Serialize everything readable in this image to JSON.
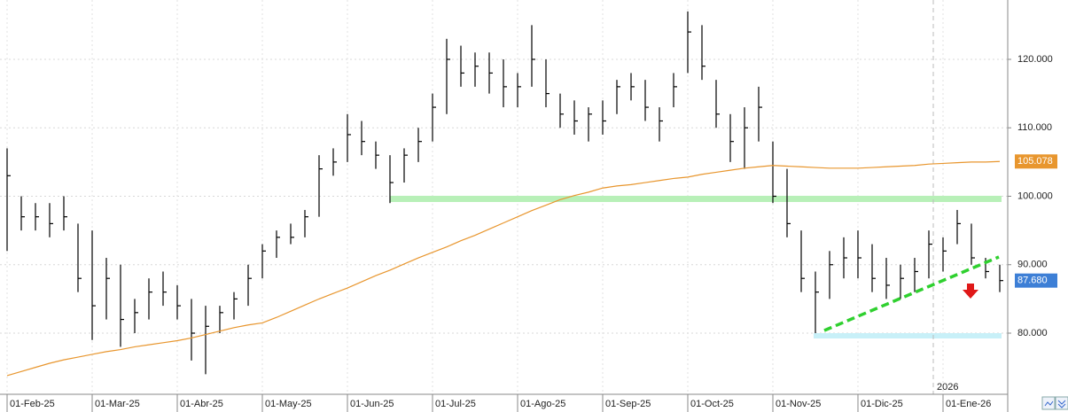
{
  "chart_data": {
    "type": "ohlc",
    "categories": [
      "01-Feb-25",
      null,
      null,
      null,
      null,
      null,
      "01-Mar-25",
      null,
      null,
      null,
      null,
      null,
      "01-Abr-25",
      null,
      null,
      null,
      null,
      null,
      "01-May-25",
      null,
      null,
      null,
      null,
      null,
      "01-Jun-25",
      null,
      null,
      null,
      null,
      null,
      "01-Jul-25",
      null,
      null,
      null,
      null,
      null,
      "01-Ago-25",
      null,
      null,
      null,
      null,
      null,
      "01-Sep-25",
      null,
      null,
      null,
      null,
      null,
      "01-Oct-25",
      null,
      null,
      null,
      null,
      null,
      "01-Nov-25",
      null,
      null,
      null,
      null,
      null,
      "01-Dic-25",
      null,
      null,
      null,
      null,
      null,
      "01-Ene-26",
      null,
      null,
      null,
      null
    ],
    "year_label": "2026",
    "ylim": [
      71.07,
      128.67
    ],
    "yticks": [
      {
        "value": 80,
        "label": "80.000"
      },
      {
        "value": 90,
        "label": "90.000"
      },
      {
        "value": 100,
        "label": "100.000"
      },
      {
        "value": 110,
        "label": "110.000"
      },
      {
        "value": 120,
        "label": "120.000"
      }
    ],
    "grid": true,
    "series": [
      {
        "type": "ohlc",
        "color": "#000000",
        "label_color": "#3d7fd6",
        "high": [
          107,
          100,
          99,
          99,
          100,
          96,
          95,
          91,
          90,
          85,
          88,
          89,
          87,
          85,
          84,
          84,
          86,
          90,
          93,
          95,
          96,
          98,
          106,
          107,
          112,
          111,
          108,
          106,
          107,
          110,
          115,
          123,
          122,
          121,
          121,
          120,
          118,
          125,
          120,
          115,
          114,
          113,
          114,
          117,
          118,
          117,
          113,
          118,
          127,
          125,
          117,
          112,
          113,
          116,
          108,
          104,
          95,
          89,
          92,
          94,
          95,
          93,
          91,
          90,
          91,
          95,
          94,
          98,
          96,
          91,
          90
        ],
        "low": [
          92,
          95,
          95,
          94,
          95,
          86,
          79,
          82,
          78,
          80,
          82,
          84,
          82,
          76,
          74,
          80,
          82,
          84,
          88,
          91,
          93,
          94,
          97,
          103,
          105,
          106,
          104,
          99,
          102,
          105,
          108,
          112,
          116,
          116,
          115,
          113,
          113,
          116,
          113,
          110,
          109,
          108,
          109,
          112,
          114,
          111,
          108,
          113,
          118,
          117,
          110,
          105,
          104,
          108,
          99,
          94,
          86,
          80,
          85,
          88,
          88,
          86,
          85,
          85,
          86,
          88,
          89,
          93,
          90,
          88,
          86
        ],
        "close": [
          103,
          97,
          97,
          96,
          97,
          88,
          84,
          88,
          82,
          83,
          86,
          86,
          84,
          80,
          81,
          83,
          85,
          88,
          92,
          94,
          94,
          97,
          104,
          105,
          109,
          108,
          106,
          102,
          106,
          108,
          113,
          120,
          118,
          119,
          118,
          116,
          116,
          120,
          115,
          112,
          111,
          112,
          111,
          116,
          116,
          113,
          111,
          116,
          124,
          119,
          112,
          108,
          110,
          113,
          100,
          96,
          88,
          86,
          90,
          91,
          91,
          88,
          87,
          88,
          89,
          93,
          92,
          96,
          91,
          89,
          87.68
        ],
        "value_labels": [
          null,
          null,
          null,
          null,
          null,
          null,
          null,
          null,
          null,
          null,
          null,
          null,
          null,
          null,
          null,
          null,
          null,
          null,
          null,
          null,
          null,
          null,
          null,
          null,
          null,
          null,
          null,
          null,
          null,
          null,
          null,
          null,
          null,
          null,
          null,
          null,
          null,
          null,
          null,
          null,
          null,
          null,
          null,
          null,
          null,
          null,
          null,
          null,
          null,
          null,
          null,
          null,
          null,
          null,
          null,
          null,
          null,
          null,
          null,
          null,
          null,
          null,
          null,
          null,
          null,
          null,
          null,
          null,
          null,
          null,
          "87.680"
        ]
      },
      {
        "type": "line",
        "color": "#e8962e",
        "values": [
          73.8,
          74.4,
          75.0,
          75.6,
          76.1,
          76.5,
          76.9,
          77.3,
          77.6,
          78.0,
          78.3,
          78.6,
          78.9,
          79.3,
          79.8,
          80.3,
          80.8,
          81.2,
          81.5,
          82.3,
          83.2,
          84.1,
          85.0,
          85.8,
          86.6,
          87.5,
          88.4,
          89.2,
          90.1,
          91.0,
          91.8,
          92.6,
          93.5,
          94.3,
          95.2,
          96.1,
          97.0,
          97.9,
          98.7,
          99.5,
          100.1,
          100.6,
          101.2,
          101.5,
          101.7,
          102.0,
          102.3,
          102.6,
          102.8,
          103.2,
          103.5,
          103.8,
          104.1,
          104.3,
          104.5,
          104.4,
          104.3,
          104.2,
          104.1,
          104.1,
          104.1,
          104.2,
          104.3,
          104.4,
          104.5,
          104.7,
          104.8,
          104.9,
          105.0,
          105.0,
          105.078
        ],
        "value_labels": [
          null,
          null,
          null,
          null,
          null,
          null,
          null,
          null,
          null,
          null,
          null,
          null,
          null,
          null,
          null,
          null,
          null,
          null,
          null,
          null,
          null,
          null,
          null,
          null,
          null,
          null,
          null,
          null,
          null,
          null,
          null,
          null,
          null,
          null,
          null,
          null,
          null,
          null,
          null,
          null,
          null,
          null,
          null,
          null,
          null,
          null,
          null,
          null,
          null,
          null,
          null,
          null,
          null,
          null,
          null,
          null,
          null,
          null,
          null,
          null,
          null,
          null,
          null,
          null,
          null,
          null,
          null,
          null,
          null,
          null,
          "105.078"
        ]
      }
    ]
  }
}
